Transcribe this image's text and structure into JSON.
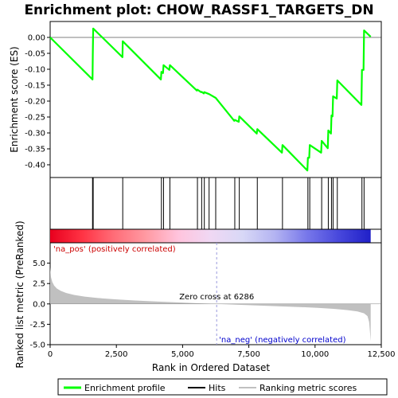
{
  "chart_data": {
    "type": "line",
    "title": "Enrichment plot: CHOW_RASSF1_TARGETS_DN",
    "xlabel": "Rank in Ordered Dataset",
    "xlim": [
      0,
      12500
    ],
    "xticks": [
      0,
      2500,
      5000,
      7500,
      10000,
      12500
    ],
    "xtick_labels": [
      "0",
      "2,500",
      "5,000",
      "7,500",
      "10,000",
      "12,500"
    ],
    "n_genes": 12100,
    "es_panel": {
      "ylabel": "Enrichment score (ES)",
      "ylim": [
        -0.44,
        0.05
      ],
      "yticks": [
        0.0,
        -0.05,
        -0.1,
        -0.15,
        -0.2,
        -0.25,
        -0.3,
        -0.35,
        -0.4
      ],
      "ytick_labels": [
        "0.00",
        "-0.05",
        "-0.10",
        "-0.15",
        "-0.20",
        "-0.25",
        "-0.30",
        "-0.35",
        "-0.40"
      ],
      "series": [
        {
          "name": "Enrichment profile",
          "color": "#00ff00",
          "x": [
            0,
            1600,
            1610,
            1625,
            2730,
            2740,
            4180,
            4200,
            4260,
            4280,
            4500,
            4520,
            5540,
            5560,
            5700,
            5720,
            5800,
            5820,
            6000,
            6250,
            6950,
            6970,
            7120,
            7140,
            7800,
            7820,
            8750,
            8770,
            9710,
            9730,
            9780,
            9800,
            10230,
            10250,
            10480,
            10500,
            10600,
            10620,
            10660,
            10680,
            10820,
            10840,
            11750,
            11770,
            11830,
            11850,
            12100
          ],
          "y": [
            0.0,
            -0.132,
            -0.052,
            0.028,
            -0.062,
            -0.012,
            -0.132,
            -0.108,
            -0.112,
            -0.087,
            -0.102,
            -0.087,
            -0.167,
            -0.164,
            -0.172,
            -0.171,
            -0.176,
            -0.172,
            -0.178,
            -0.19,
            -0.262,
            -0.259,
            -0.265,
            -0.248,
            -0.302,
            -0.288,
            -0.362,
            -0.338,
            -0.418,
            -0.378,
            -0.378,
            -0.338,
            -0.362,
            -0.325,
            -0.348,
            -0.292,
            -0.302,
            -0.245,
            -0.248,
            -0.185,
            -0.192,
            -0.135,
            -0.212,
            -0.102,
            -0.102,
            0.022,
            0.002
          ]
        }
      ]
    },
    "hits": {
      "name": "Hits",
      "color": "#000000",
      "x": [
        1600,
        1625,
        2740,
        4200,
        4280,
        4520,
        5560,
        5720,
        5820,
        6000,
        6250,
        6970,
        7140,
        7820,
        8770,
        9730,
        9800,
        10250,
        10500,
        10620,
        10680,
        10840,
        11770,
        11850
      ]
    },
    "heatmap_bar": {
      "colors_left_to_right": [
        "#e8001e",
        "#ff3344",
        "#ff6d78",
        "#ff9aa3",
        "#ffc4dd",
        "#f0d8f4",
        "#d8d8f6",
        "#b4b4f2",
        "#7878ea",
        "#4848dc",
        "#2020c8"
      ]
    },
    "metric_panel": {
      "ylabel": "Ranked list metric (PreRanked)",
      "ylim": [
        -5.0,
        7.5
      ],
      "yticks": [
        5.0,
        2.5,
        0.0,
        -2.5,
        -5.0
      ],
      "ytick_labels": [
        "5.0",
        "2.5",
        "0.0",
        "-2.5",
        "-5.0"
      ],
      "zero_cross_text": "Zero cross at 6286",
      "zero_cross_rank": 6286,
      "pos_label": "'na_pos' (positively correlated)",
      "neg_label": "'na_neg' (negatively correlated)",
      "pos_color": "#cc0000",
      "neg_color": "#0000cc",
      "fill_color": "#c0c0c0",
      "profile_x": [
        0,
        30,
        80,
        150,
        250,
        400,
        600,
        900,
        1300,
        1800,
        2500,
        3200,
        4000,
        4800,
        5600,
        6286,
        7000,
        7800,
        8600,
        9400,
        10100,
        10700,
        11200,
        11600,
        11850,
        11980,
        12040,
        12070,
        12100
      ],
      "profile_y": [
        4.5,
        3.3,
        2.7,
        2.25,
        1.9,
        1.6,
        1.35,
        1.1,
        0.9,
        0.72,
        0.55,
        0.42,
        0.3,
        0.19,
        0.08,
        0.0,
        -0.09,
        -0.19,
        -0.29,
        -0.38,
        -0.48,
        -0.6,
        -0.75,
        -0.92,
        -1.15,
        -1.5,
        -2.2,
        -3.3,
        -4.6
      ]
    },
    "legend": {
      "placement": "bottom",
      "items": [
        {
          "label": "Enrichment profile",
          "color": "#00ff00"
        },
        {
          "label": "Hits",
          "color": "#000000"
        },
        {
          "label": "Ranking metric scores",
          "color": "#c0c0c0"
        }
      ]
    }
  }
}
